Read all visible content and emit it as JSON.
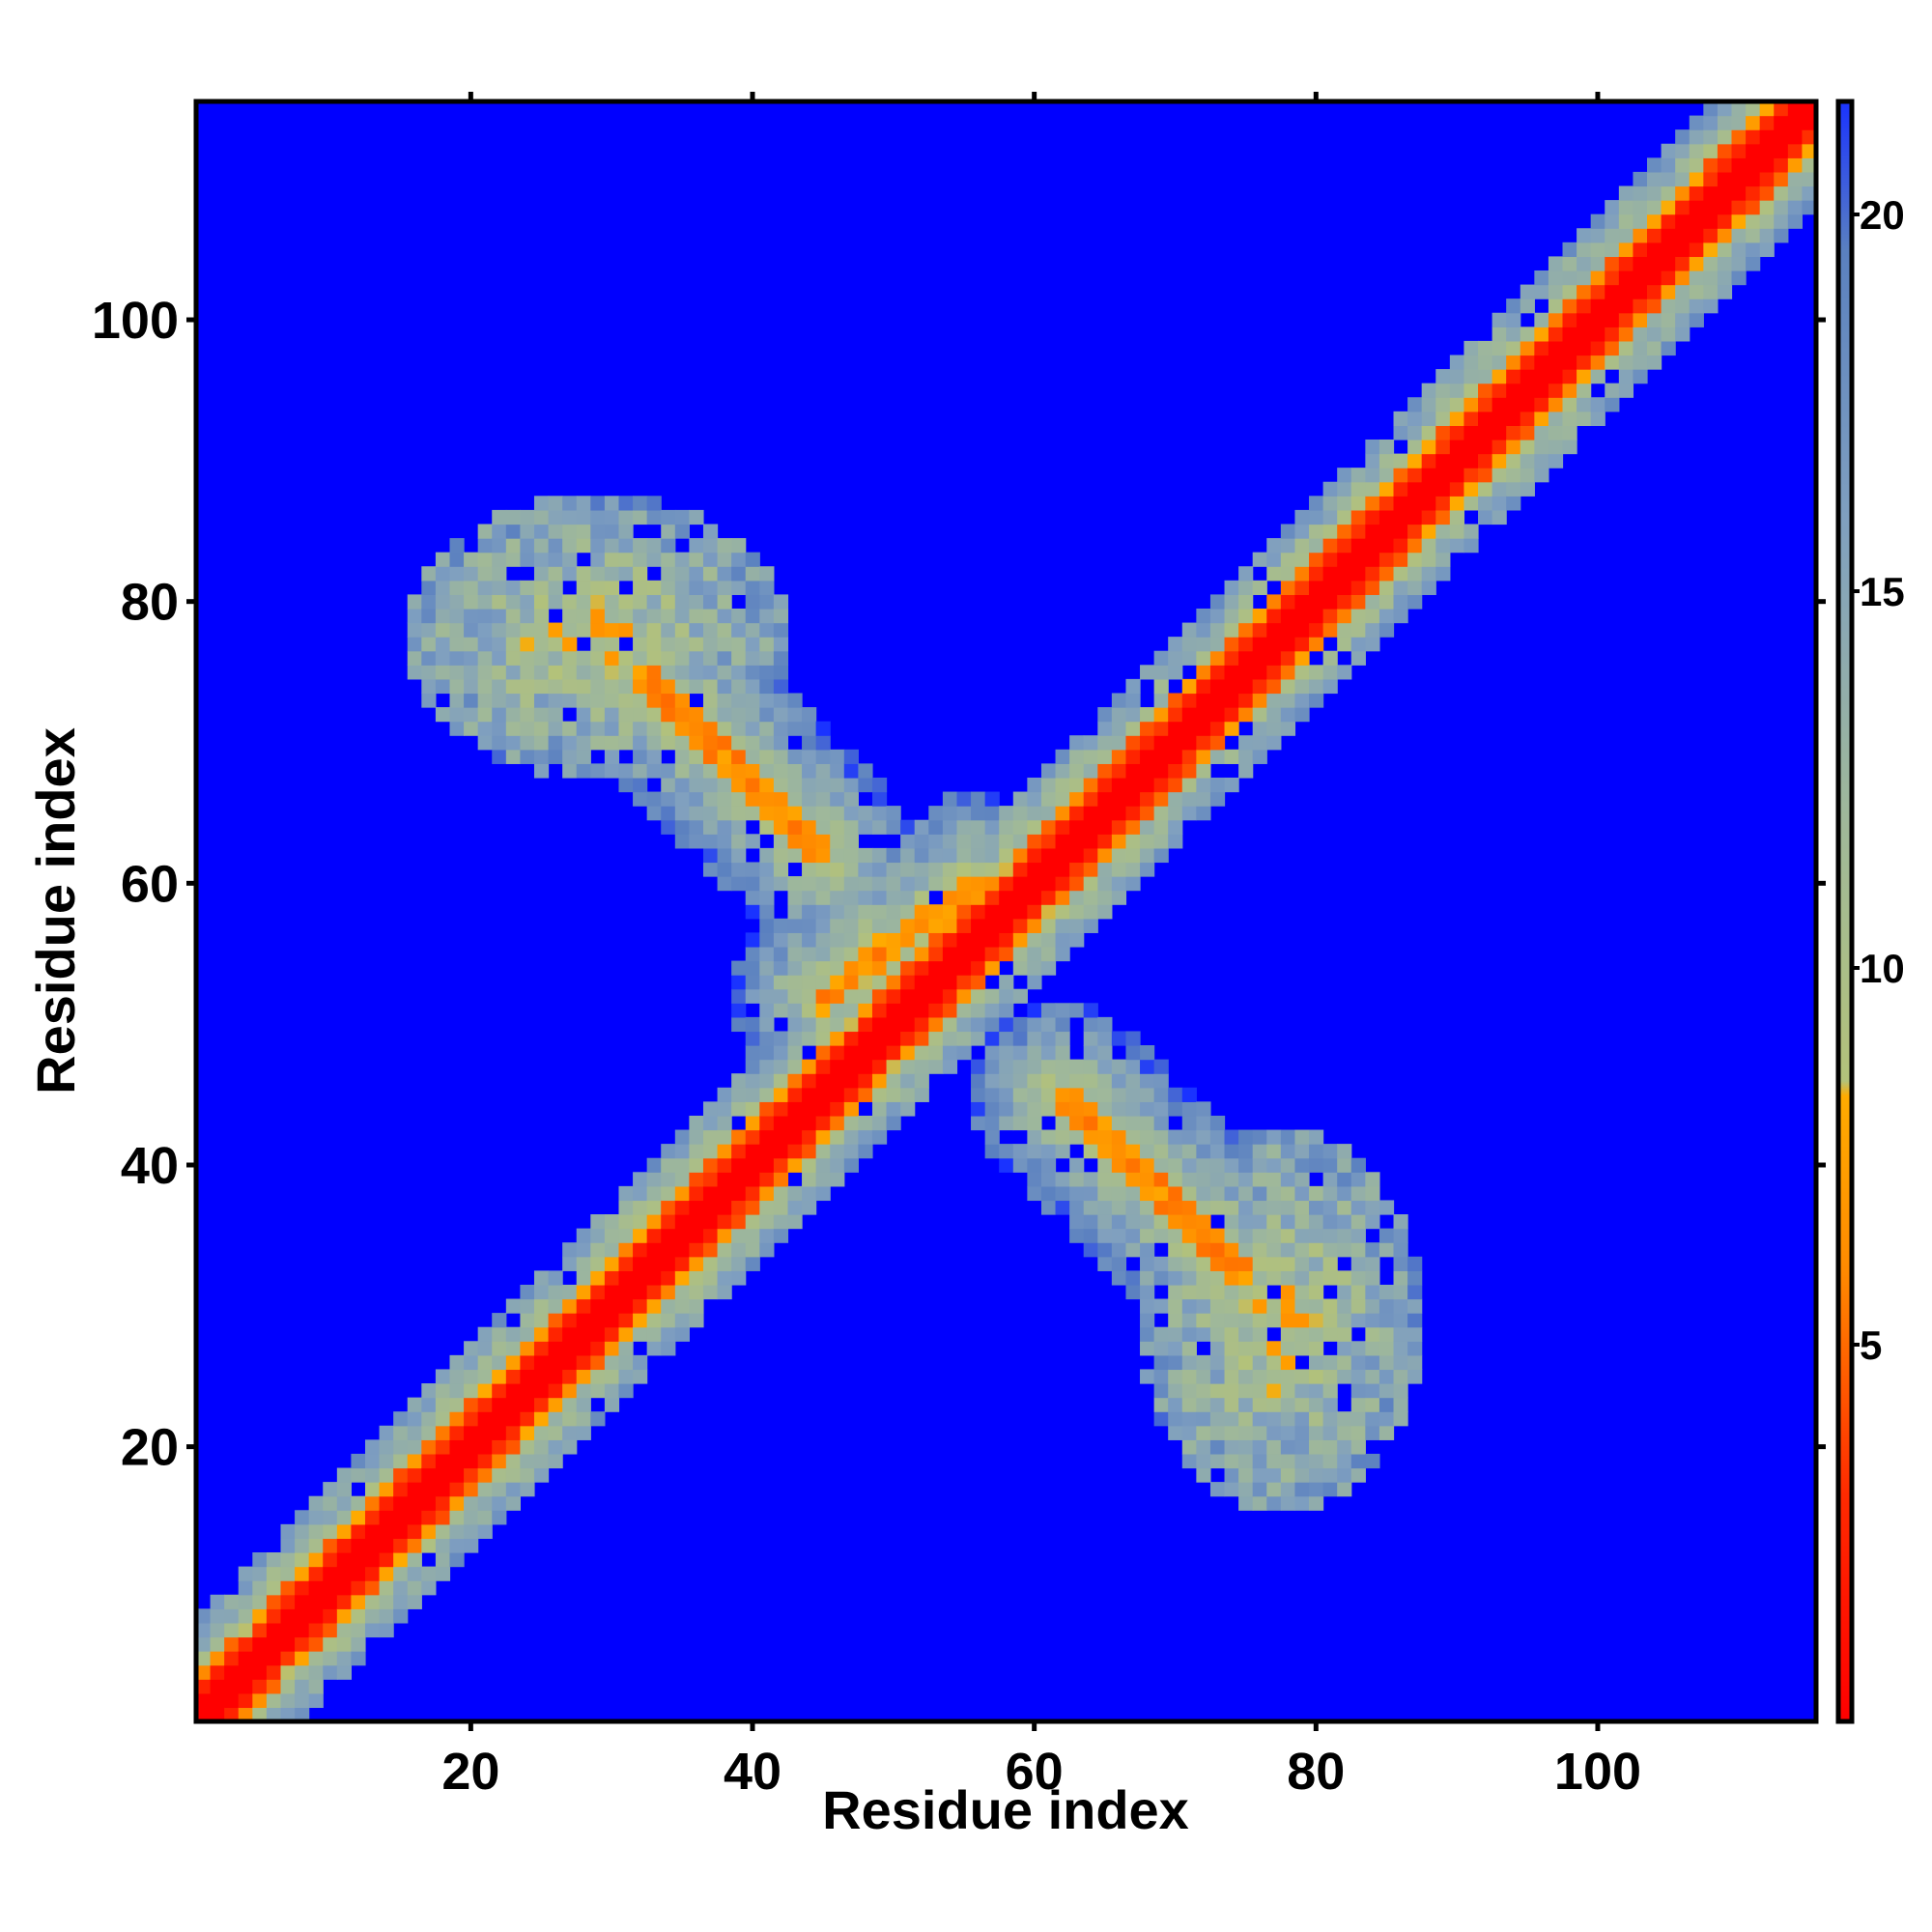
{
  "chart_data": {
    "type": "heatmap",
    "title": "",
    "xlabel": "Residue index",
    "ylabel": "Residue index",
    "n_residues": 115,
    "xlim": [
      1,
      115
    ],
    "ylim": [
      1,
      115
    ],
    "x_ticks": [
      20,
      40,
      60,
      80,
      100
    ],
    "y_ticks": [
      20,
      40,
      60,
      80,
      100
    ],
    "colorbar": {
      "range": [
        0,
        21.5
      ],
      "ticks": [
        5,
        10,
        15,
        20
      ],
      "stops": [
        {
          "value": 0,
          "color": "#ff0000"
        },
        {
          "value": 3,
          "color": "#ff2a00"
        },
        {
          "value": 6,
          "color": "#ff8a00"
        },
        {
          "value": 8.3,
          "color": "#ffab00"
        },
        {
          "value": 8.5,
          "color": "#b3c27a"
        },
        {
          "value": 12,
          "color": "#9fb89a"
        },
        {
          "value": 16,
          "color": "#7f9fc0"
        },
        {
          "value": 19.5,
          "color": "#5a80c0"
        },
        {
          "value": 21.5,
          "color": "#1a33ff"
        }
      ]
    },
    "background_value": 22,
    "background_color": "#0000ff",
    "contact_regions": [
      {
        "name": "main diagonal",
        "from": [
          1,
          1
        ],
        "to": [
          115,
          115
        ],
        "center_value": 0
      },
      {
        "name": "antiparallel sheet A",
        "from": [
          32,
          75
        ],
        "to": [
          45,
          62
        ],
        "center_value": 6
      },
      {
        "name": "antiparallel sheet B (symmetric)",
        "from": [
          62,
          45
        ],
        "to": [
          75,
          32
        ],
        "center_value": 6
      },
      {
        "name": "parallel sheet",
        "from": [
          45,
          52
        ],
        "to": [
          56,
          60
        ],
        "center_value": 6
      },
      {
        "name": "cluster",
        "from": [
          18,
          70
        ],
        "to": [
          40,
          85
        ],
        "center_value": 11
      },
      {
        "name": "cluster (symmetric)",
        "from": [
          70,
          18
        ],
        "to": [
          85,
          40
        ],
        "center_value": 11
      }
    ]
  }
}
